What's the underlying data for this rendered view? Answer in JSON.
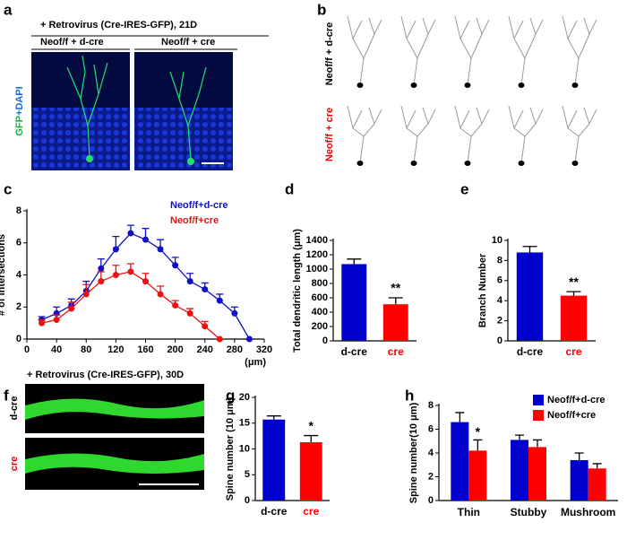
{
  "panels": {
    "labels": [
      "a",
      "b",
      "c",
      "d",
      "e",
      "f",
      "g",
      "h"
    ],
    "a": {
      "title": "+ Retrovirus (Cre-IRES-GFP), 21D",
      "left_label": "Neof/f + d-cre",
      "right_label": "Neof/f + cre",
      "stain_label": [
        "GFP",
        "+DAPI"
      ]
    },
    "b": {
      "top_label": "Neof/f + d-cre",
      "bottom_label": "Neof/f + cre"
    },
    "f": {
      "title": "+ Retrovirus (Cre-IRES-GFP), 30D",
      "top_label": "d-cre",
      "bottom_label": "cre"
    }
  },
  "chart_data": [
    {
      "type": "line",
      "ylabel": "# of intersections",
      "xlabel": "(μm)",
      "x": [
        20,
        40,
        60,
        80,
        100,
        120,
        140,
        160,
        180,
        200,
        220,
        240,
        260,
        280,
        300
      ],
      "series": [
        {
          "name": "Neof/f+d-cre",
          "color": "#1010c8",
          "values": [
            1.2,
            1.6,
            2.1,
            3.0,
            4.4,
            5.6,
            6.6,
            6.2,
            5.6,
            4.6,
            3.6,
            3.1,
            2.4,
            1.6,
            0
          ],
          "errors": [
            0.2,
            0.4,
            0.4,
            0.6,
            0.6,
            0.8,
            0.5,
            0.7,
            0.6,
            0.5,
            0.5,
            0.4,
            0.4,
            0.4,
            0
          ]
        },
        {
          "name": "Neof/f+cre",
          "color": "#ee1010",
          "values": [
            1.0,
            1.2,
            1.9,
            2.8,
            3.6,
            4.0,
            4.2,
            3.6,
            2.8,
            2.1,
            1.6,
            0.8,
            0,
            null,
            null
          ],
          "errors": [
            0.2,
            0.3,
            0.4,
            0.6,
            0.6,
            0.6,
            0.5,
            0.5,
            0.5,
            0.3,
            0.3,
            0.3,
            0,
            null,
            null
          ]
        }
      ],
      "xlim": [
        0,
        320
      ],
      "xticks": [
        0,
        40,
        80,
        120,
        160,
        200,
        240,
        280,
        320
      ],
      "ylim": [
        0,
        8
      ],
      "yticks": [
        0,
        2,
        4,
        6,
        8
      ],
      "legend": "top-right"
    },
    {
      "type": "bar",
      "ylabel": "Total dendritic length (μm)",
      "categories": [
        "d-cre",
        "cre"
      ],
      "values": [
        1070,
        510
      ],
      "errors": [
        70,
        90
      ],
      "colors": [
        "#0000cc",
        "#ff0000"
      ],
      "category_label_colors": [
        "#000000",
        "#ff0000"
      ],
      "annotation": "**",
      "ylim": [
        0,
        1400
      ],
      "yticks": [
        0,
        200,
        400,
        600,
        800,
        1000,
        1200,
        1400
      ]
    },
    {
      "type": "bar",
      "ylabel": "Branch Number",
      "categories": [
        "d-cre",
        "cre"
      ],
      "values": [
        8.8,
        4.5
      ],
      "errors": [
        0.6,
        0.4
      ],
      "colors": [
        "#0000cc",
        "#ff0000"
      ],
      "category_label_colors": [
        "#000000",
        "#ff0000"
      ],
      "annotation": "**",
      "ylim": [
        0,
        10
      ],
      "yticks": [
        0,
        2,
        4,
        6,
        8,
        10
      ]
    },
    {
      "type": "bar",
      "ylabel": "Spine number (10 μm)",
      "categories": [
        "d-cre",
        "cre"
      ],
      "values": [
        15.7,
        11.3
      ],
      "errors": [
        0.7,
        1.3
      ],
      "colors": [
        "#0000cc",
        "#ff0000"
      ],
      "category_label_colors": [
        "#000000",
        "#ff0000"
      ],
      "annotation": "*",
      "ylim": [
        0,
        20
      ],
      "yticks": [
        0,
        5,
        10,
        15,
        20
      ]
    },
    {
      "type": "grouped_bar",
      "ylabel": "Spine number(10 μm)",
      "categories": [
        "Thin",
        "Stubby",
        "Mushroom"
      ],
      "series": [
        {
          "name": "Neof/f+d-cre",
          "color": "#0000cc",
          "values": [
            6.6,
            5.1,
            3.4
          ],
          "errors": [
            0.8,
            0.4,
            0.6
          ]
        },
        {
          "name": "Neof/f+cre",
          "color": "#ff0000",
          "values": [
            4.2,
            4.5,
            2.7
          ],
          "errors": [
            0.9,
            0.6,
            0.4
          ]
        }
      ],
      "annotation": "*",
      "legend": "top-right",
      "ylim": [
        0,
        8
      ],
      "yticks": [
        0,
        2,
        4,
        6,
        8
      ]
    }
  ]
}
